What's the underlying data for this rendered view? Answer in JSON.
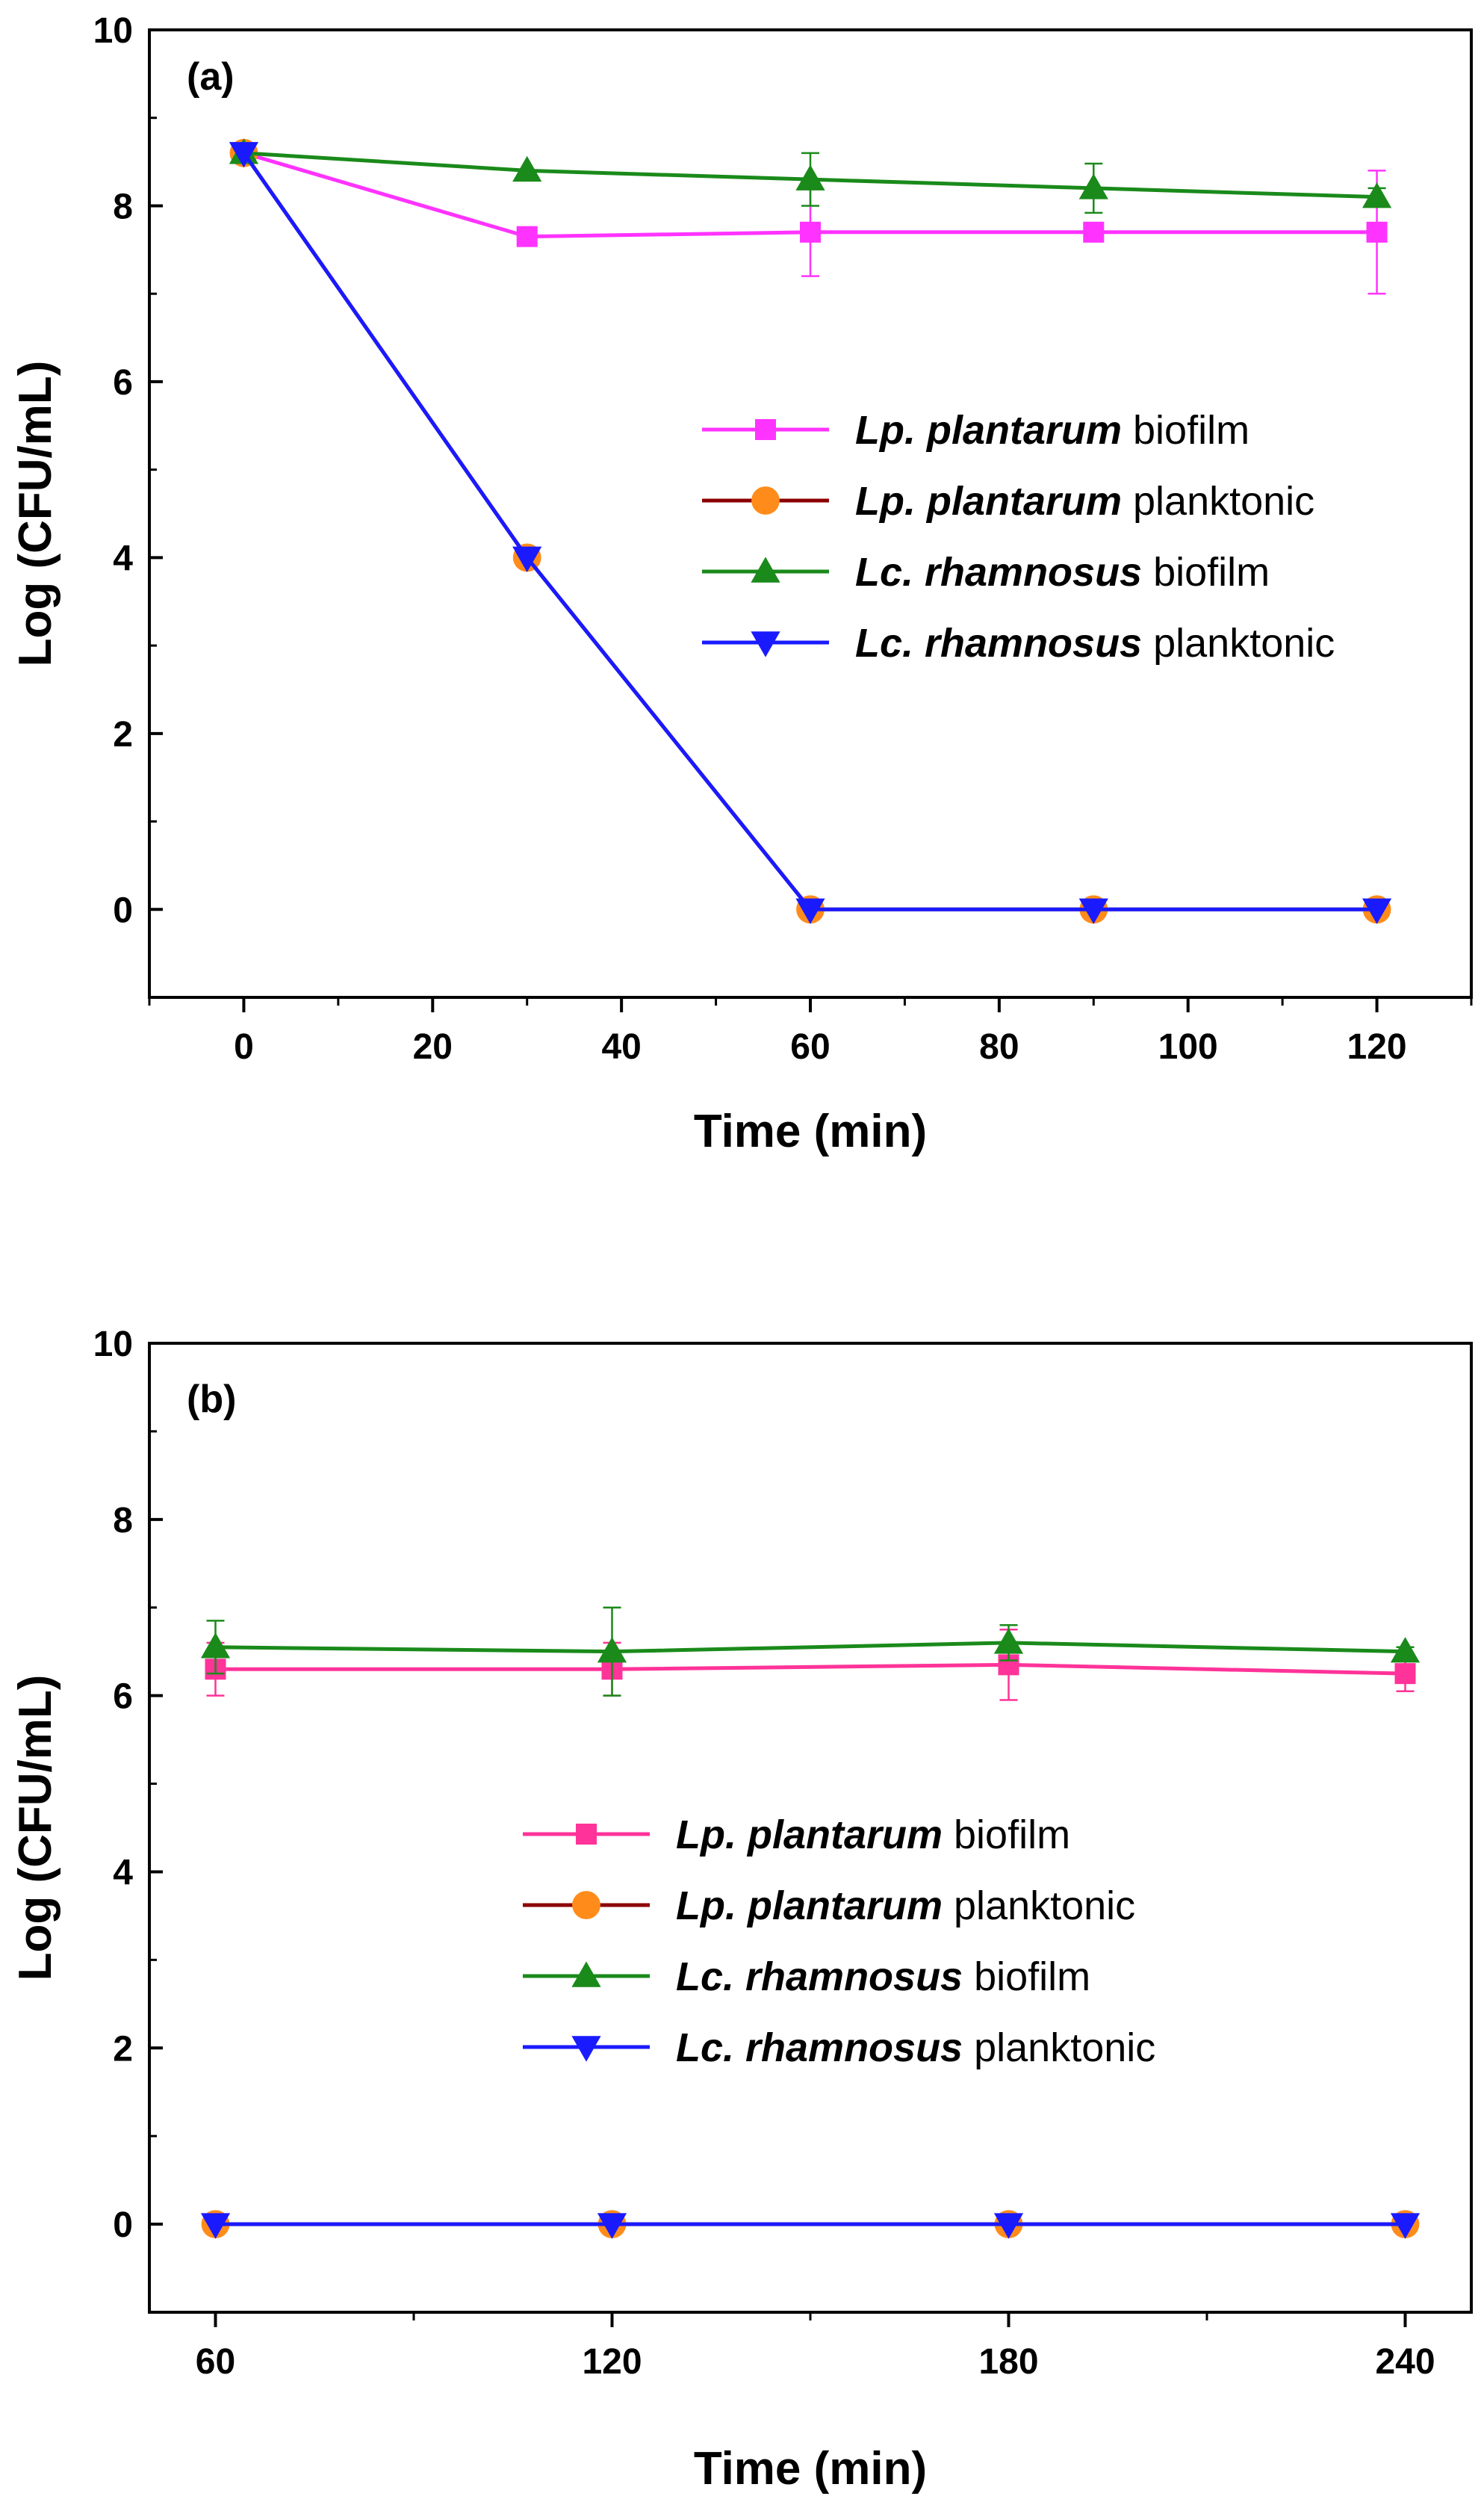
{
  "colors": {
    "lp_biofilm_a": "#ff33ff",
    "lp_biofilm_b": "#ff3399",
    "lp_planktonic_line": "#8b0000",
    "lp_planktonic_marker": "#ff8c1a",
    "lc_biofilm": "#1a8a1a",
    "lc_planktonic": "#1a1aff"
  },
  "chart_data": [
    {
      "type": "line",
      "panel_label": "(a)",
      "xlabel": "Time (min)",
      "ylabel": "Log (CFU/mL)",
      "xlim": [
        -10,
        130
      ],
      "ylim": [
        -1,
        10
      ],
      "xticks": [
        0,
        20,
        40,
        60,
        80,
        100,
        120
      ],
      "yticks": [
        0,
        2,
        4,
        6,
        8,
        10
      ],
      "legend_position": "right-middle",
      "x": [
        0,
        30,
        60,
        90,
        120
      ],
      "series": [
        {
          "key": "lp_biofilm",
          "name_italic": "Lp. plantarum",
          "name_rest": "biofilm",
          "marker": "square",
          "color_key": "lp_biofilm_a",
          "values": [
            8.6,
            7.65,
            7.7,
            7.7,
            7.7
          ],
          "errors": [
            0,
            0,
            0.5,
            0.1,
            0.7
          ]
        },
        {
          "key": "lp_planktonic",
          "name_italic": "Lp. plantarum",
          "name_rest": "planktonic",
          "marker": "circle",
          "color_key": "lp_planktonic_line",
          "values": [
            8.6,
            4.0,
            0,
            0,
            0
          ],
          "errors": [
            0,
            0,
            0,
            0,
            0
          ]
        },
        {
          "key": "lc_biofilm",
          "name_italic": "Lc. rhamnosus",
          "name_rest": "biofilm",
          "marker": "triangle-up",
          "color_key": "lc_biofilm",
          "values": [
            8.6,
            8.4,
            8.3,
            8.2,
            8.1
          ],
          "errors": [
            0,
            0,
            0.3,
            0.28,
            0.1
          ]
        },
        {
          "key": "lc_planktonic",
          "name_italic": "Lc. rhamnosus",
          "name_rest": "planktonic",
          "marker": "triangle-down",
          "color_key": "lc_planktonic",
          "values": [
            8.6,
            4.0,
            0,
            0,
            0
          ],
          "errors": [
            0,
            0,
            0,
            0,
            0
          ]
        }
      ]
    },
    {
      "type": "line",
      "panel_label": "(b)",
      "xlabel": "Time (min)",
      "ylabel": "Log (CFU/mL)",
      "xlim": [
        50,
        250
      ],
      "ylim": [
        -1,
        10
      ],
      "xticks": [
        60,
        120,
        180,
        240
      ],
      "yticks": [
        0,
        2,
        4,
        6,
        8,
        10
      ],
      "legend_position": "center",
      "x": [
        60,
        120,
        180,
        240
      ],
      "series": [
        {
          "key": "lp_biofilm",
          "name_italic": "Lp. plantarum",
          "name_rest": "biofilm",
          "marker": "square",
          "color_key": "lp_biofilm_b",
          "values": [
            6.3,
            6.3,
            6.35,
            6.25
          ],
          "errors": [
            0.3,
            0.3,
            0.4,
            0.2
          ]
        },
        {
          "key": "lp_planktonic",
          "name_italic": "Lp. plantarum",
          "name_rest": "planktonic",
          "marker": "circle",
          "color_key": "lp_planktonic_line",
          "values": [
            0,
            0,
            0,
            0
          ],
          "errors": [
            0,
            0,
            0,
            0
          ]
        },
        {
          "key": "lc_biofilm",
          "name_italic": "Lc. rhamnosus",
          "name_rest": "biofilm",
          "marker": "triangle-up",
          "color_key": "lc_biofilm",
          "values": [
            6.55,
            6.5,
            6.6,
            6.5
          ],
          "errors": [
            0.3,
            0.5,
            0.2,
            0.05
          ]
        },
        {
          "key": "lc_planktonic",
          "name_italic": "Lc. rhamnosus",
          "name_rest": "planktonic",
          "marker": "triangle-down",
          "color_key": "lc_planktonic",
          "values": [
            0,
            0,
            0,
            0
          ],
          "errors": [
            0,
            0,
            0,
            0
          ]
        }
      ]
    }
  ]
}
